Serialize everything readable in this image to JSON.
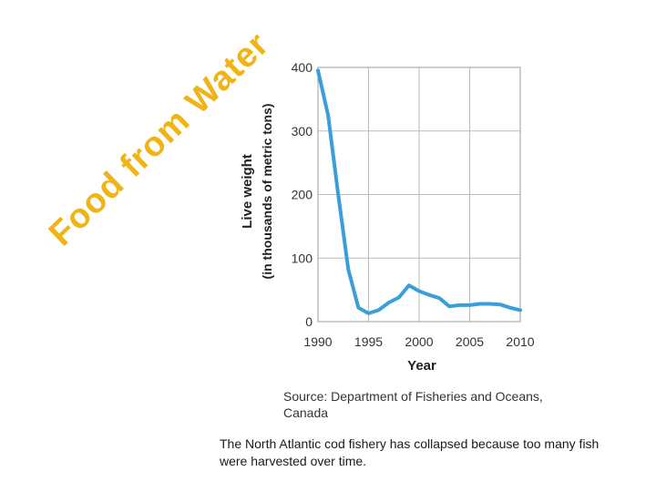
{
  "title": "Food from Water",
  "caption": "The North Atlantic cod fishery has collapsed because too many fish were harvested over time.",
  "source": "Source: Department of Fisheries and Oceans, Canada",
  "colors": {
    "title": "#f1b416",
    "line": "#3a9fd9",
    "grid": "#bdbdbd"
  },
  "chart_data": {
    "type": "line",
    "xlabel": "Year",
    "ylabel": "Live weight",
    "ylabel_sub": "(in thousands of metric tons)",
    "xlim": [
      1990,
      2010
    ],
    "ylim": [
      0,
      400
    ],
    "xticks": [
      1990,
      1995,
      2000,
      2005,
      2010
    ],
    "yticks": [
      0,
      100,
      200,
      300,
      400
    ],
    "grid": true,
    "x": [
      1990,
      1991,
      1992,
      1993,
      1994,
      1995,
      1996,
      1997,
      1998,
      1999,
      2000,
      2001,
      2002,
      2003,
      2004,
      2005,
      2006,
      2007,
      2008,
      2009,
      2010
    ],
    "values": [
      395,
      325,
      200,
      82,
      22,
      13,
      18,
      30,
      38,
      57,
      48,
      42,
      37,
      24,
      26,
      26,
      28,
      28,
      27,
      22,
      18
    ]
  }
}
